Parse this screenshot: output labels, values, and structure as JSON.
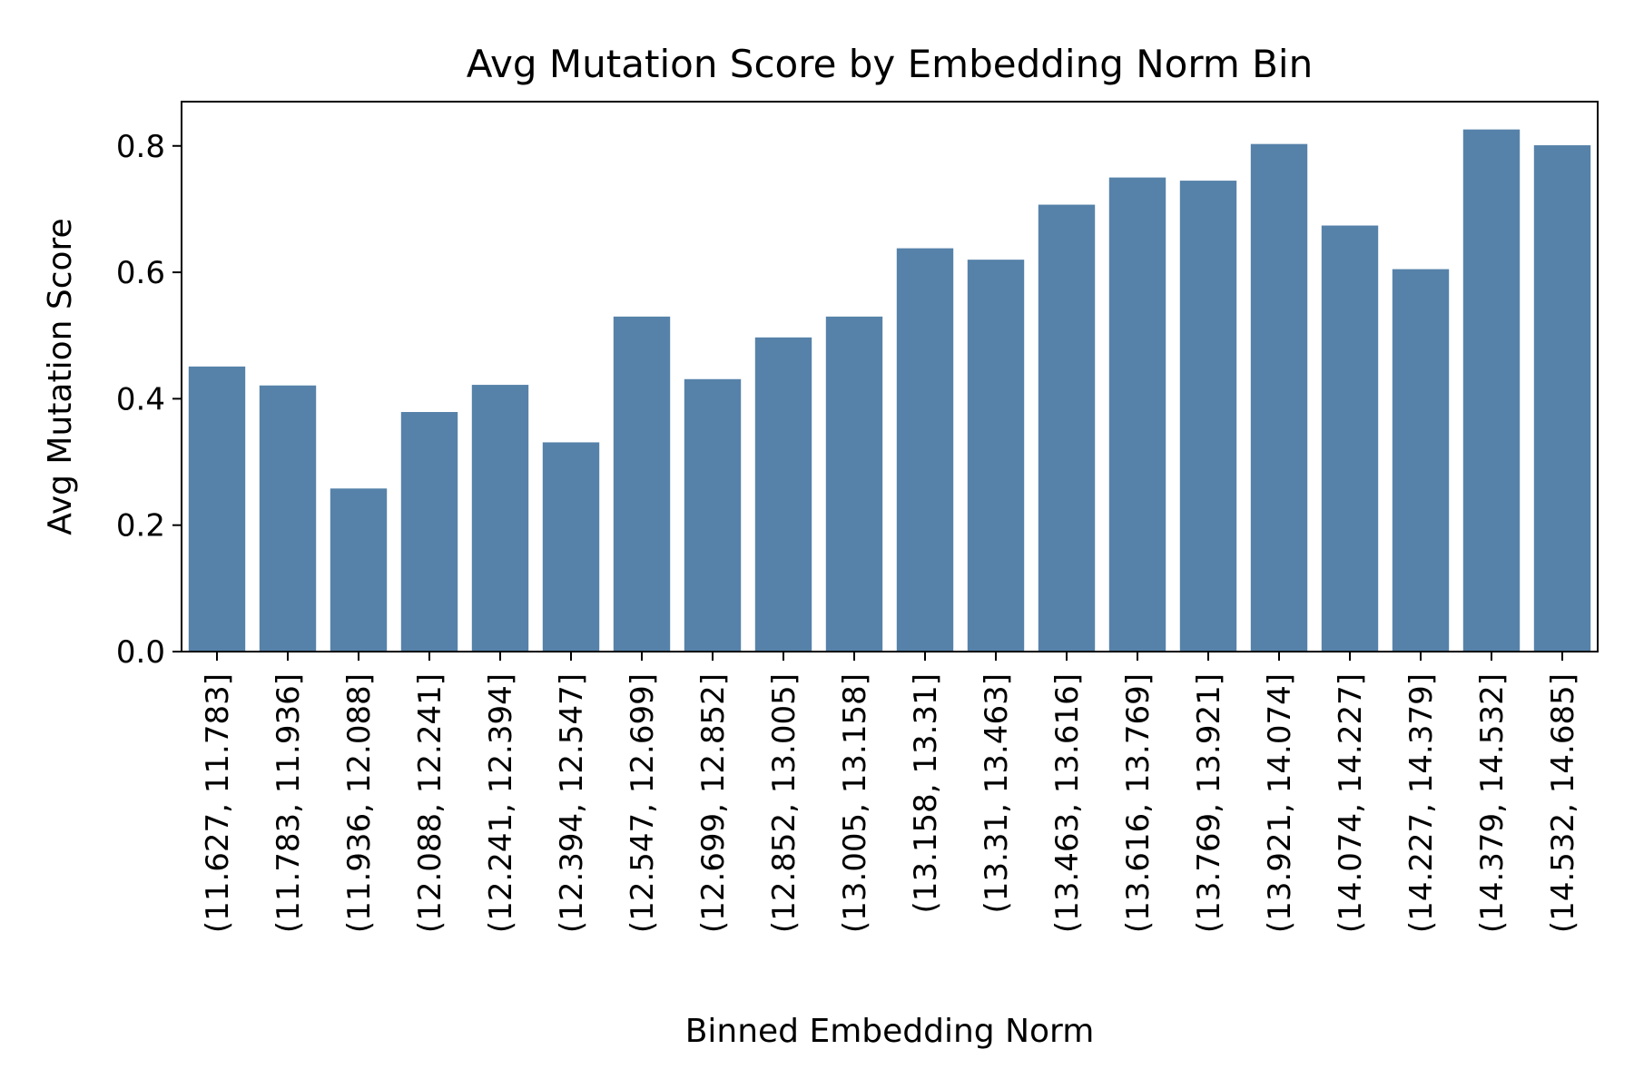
{
  "chart_data": {
    "type": "bar",
    "title": "Avg Mutation Score by Embedding Norm Bin",
    "xlabel": "Binned Embedding Norm",
    "ylabel": "Avg Mutation Score",
    "ylim": [
      0,
      0.87
    ],
    "yticks": [
      "0.0",
      "0.2",
      "0.4",
      "0.6",
      "0.8"
    ],
    "grid": false,
    "bar_color": "#5682a9",
    "categories": [
      "(11.627, 11.783]",
      "(11.783, 11.936]",
      "(11.936, 12.088]",
      "(12.088, 12.241]",
      "(12.241, 12.394]",
      "(12.394, 12.547]",
      "(12.547, 12.699]",
      "(12.699, 12.852]",
      "(12.852, 13.005]",
      "(13.005, 13.158]",
      "(13.158, 13.31]",
      "(13.31, 13.463]",
      "(13.463, 13.616]",
      "(13.616, 13.769]",
      "(13.769, 13.921]",
      "(13.921, 14.074]",
      "(14.074, 14.227]",
      "(14.227, 14.379]",
      "(14.379, 14.532]",
      "(14.532, 14.685]"
    ],
    "values": [
      0.451,
      0.421,
      0.258,
      0.379,
      0.422,
      0.331,
      0.53,
      0.431,
      0.497,
      0.53,
      0.638,
      0.62,
      0.707,
      0.75,
      0.745,
      0.803,
      0.674,
      0.605,
      0.826,
      0.801
    ]
  }
}
